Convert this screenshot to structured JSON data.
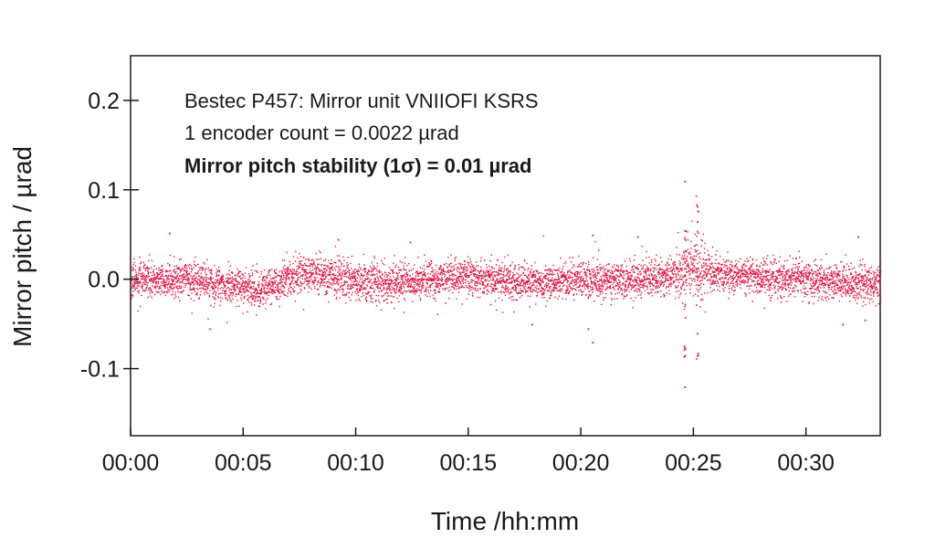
{
  "chart_data": {
    "type": "scatter",
    "xlabel": "Time /hh:mm",
    "ylabel": "Mirror pitch / µrad",
    "xlim_minutes": [
      0,
      33.3
    ],
    "ylim": [
      -0.175,
      0.25
    ],
    "x_ticks": [
      {
        "minutes": 0,
        "label": "00:00"
      },
      {
        "minutes": 5,
        "label": "00:05"
      },
      {
        "minutes": 10,
        "label": "00:10"
      },
      {
        "minutes": 15,
        "label": "00:15"
      },
      {
        "minutes": 20,
        "label": "00:20"
      },
      {
        "minutes": 25,
        "label": "00:25"
      },
      {
        "minutes": 30,
        "label": "00:30"
      }
    ],
    "y_ticks": [
      {
        "value": 0.2,
        "label": "0.2"
      },
      {
        "value": 0.1,
        "label": "0.1"
      },
      {
        "value": 0.0,
        "label": "0.0"
      },
      {
        "value": -0.1,
        "label": "-0.1"
      }
    ],
    "annotations": [
      {
        "text": "Bestec P457: Mirror unit VNIIOFI KSRS",
        "bold": false
      },
      {
        "text": "1 encoder count = 0.0022 µrad",
        "bold": false
      },
      {
        "text": "Mirror pitch stability (1σ) = 0.01 µrad",
        "bold": true
      }
    ],
    "series": [
      {
        "color": "#e0103f",
        "baseline_profile": [
          [
            0,
            0.0
          ],
          [
            3,
            0.0
          ],
          [
            5,
            -0.01
          ],
          [
            5.8,
            -0.012
          ],
          [
            6.5,
            -0.003
          ],
          [
            7.5,
            0.008
          ],
          [
            8.5,
            0.004
          ],
          [
            10,
            0.0
          ],
          [
            12,
            -0.003
          ],
          [
            13.5,
            0.0
          ],
          [
            15,
            0.005
          ],
          [
            16,
            0.0
          ],
          [
            18,
            -0.003
          ],
          [
            20,
            0.0
          ],
          [
            22,
            0.0
          ],
          [
            24,
            0.004
          ],
          [
            24.6,
            0.01
          ],
          [
            25,
            0.015
          ],
          [
            25.4,
            0.012
          ],
          [
            26,
            0.006
          ],
          [
            28,
            0.003
          ],
          [
            30,
            0.0
          ],
          [
            33.3,
            -0.005
          ]
        ],
        "noise_sigma": 0.01,
        "outliers": [
          {
            "minutes": 24.6,
            "y": 0.11
          },
          {
            "minutes": 24.6,
            "y": 0.055
          },
          {
            "minutes": 24.6,
            "y": -0.12
          },
          {
            "minutes": 24.6,
            "y": -0.085
          },
          {
            "minutes": 25.15,
            "y": 0.082
          },
          {
            "minutes": 25.15,
            "y": 0.065
          },
          {
            "minutes": 25.15,
            "y": -0.06
          },
          {
            "minutes": 25.15,
            "y": -0.085
          },
          {
            "minutes": 20.5,
            "y": 0.05
          },
          {
            "minutes": 20.5,
            "y": -0.07
          },
          {
            "minutes": 20.3,
            "y": -0.055
          },
          {
            "minutes": 3.5,
            "y": -0.055
          },
          {
            "minutes": 1.7,
            "y": 0.052
          },
          {
            "minutes": 32.3,
            "y": 0.048
          },
          {
            "minutes": 32.6,
            "y": -0.045
          },
          {
            "minutes": 31.6,
            "y": -0.05
          },
          {
            "minutes": 17.8,
            "y": -0.05
          },
          {
            "minutes": 9.2,
            "y": 0.045
          },
          {
            "minutes": 12.4,
            "y": 0.042
          },
          {
            "minutes": 22.5,
            "y": 0.048
          }
        ]
      }
    ]
  }
}
